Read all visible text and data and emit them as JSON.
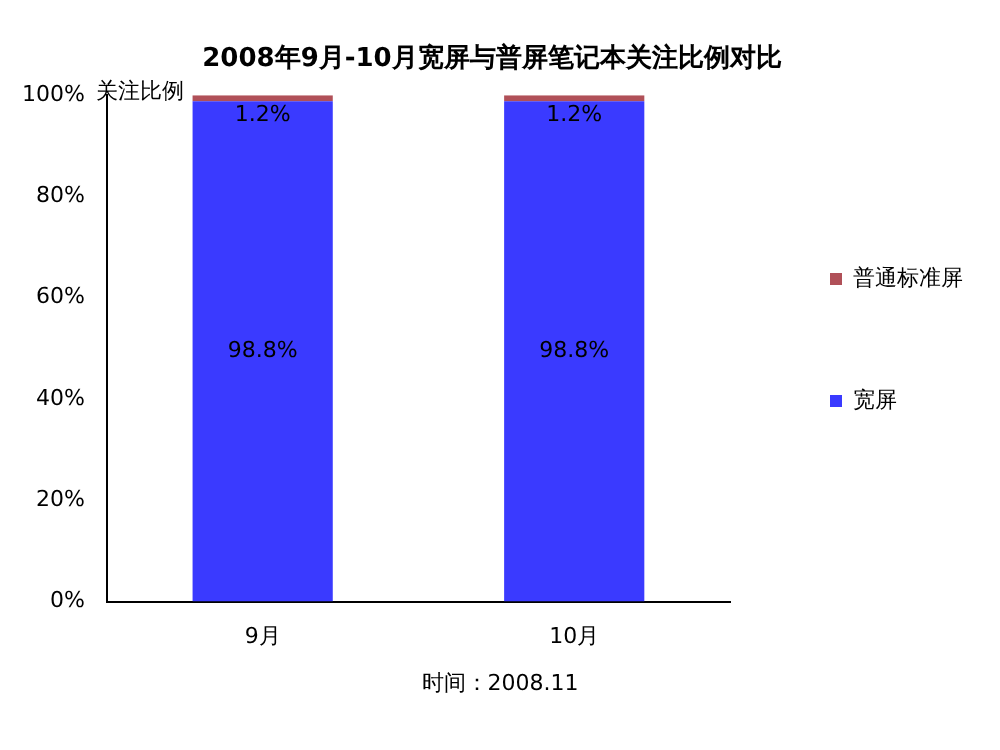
{
  "chart_data": {
    "type": "bar",
    "title": "2008年9月-10月宽屏与普屏笔记本关注比例对比",
    "ylabel": "关注比例",
    "categories": [
      "9月",
      "10月"
    ],
    "stacked": true,
    "series": [
      {
        "name": "宽屏",
        "color": "#3a3aff",
        "values": [
          98.8,
          98.8
        ],
        "value_labels": [
          "98.8%",
          "98.8%"
        ]
      },
      {
        "name": "普通标准屏",
        "color": "#b05058",
        "values": [
          1.2,
          1.2
        ],
        "value_labels": [
          "1.2%",
          "1.2%"
        ]
      }
    ],
    "ylim": [
      0,
      100
    ],
    "yticks": [
      {
        "value": 0,
        "label": "0%"
      },
      {
        "value": 20,
        "label": "20%"
      },
      {
        "value": 40,
        "label": "40%"
      },
      {
        "value": 60,
        "label": "60%"
      },
      {
        "value": 80,
        "label": "80%"
      },
      {
        "value": 100,
        "label": "100%"
      }
    ],
    "grid": false,
    "legend": "right",
    "annotations": [
      "时间：2008.11"
    ]
  }
}
